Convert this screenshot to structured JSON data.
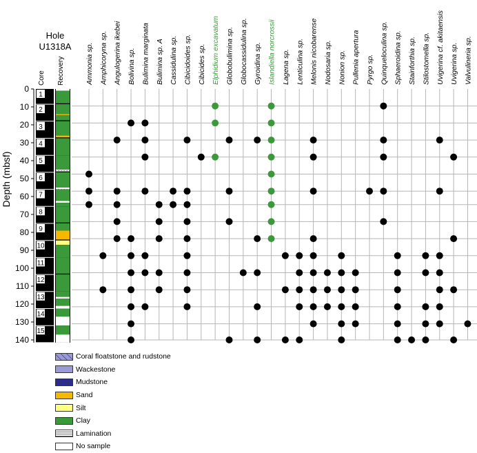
{
  "figure": {
    "hole_title_line1": "Hole",
    "hole_title_line2": "U1318A",
    "core_column_label": "Core",
    "recovery_column_label": "Recovery"
  },
  "chart_data": {
    "type": "scatter",
    "title": "Hole U1318A",
    "ylabel": "Depth (mbsf)",
    "ylim": [
      0,
      140
    ],
    "yticks": [
      0,
      10,
      20,
      30,
      40,
      50,
      60,
      70,
      80,
      90,
      100,
      110,
      120,
      130,
      140
    ],
    "grid": true,
    "highlight_color": "#3a9a3a",
    "marker_color": "#000000",
    "depths": [
      9.5,
      19,
      28.5,
      38,
      47.5,
      57,
      64.5,
      74,
      83.5,
      93,
      102.5,
      112,
      121.5,
      131,
      140
    ],
    "series": [
      {
        "name": "Ammonia sp.",
        "highlight": false,
        "depths": [
          47.5,
          57,
          64.5
        ]
      },
      {
        "name": "Amphicoryna sp.",
        "highlight": false,
        "depths": [
          93,
          112
        ]
      },
      {
        "name": "Angulogerina ikebei",
        "highlight": false,
        "depths": [
          28.5,
          57,
          64.5,
          74,
          83.5
        ]
      },
      {
        "name": "Bolivina sp.",
        "highlight": false,
        "depths": [
          19,
          83.5,
          93,
          102.5,
          112,
          121.5,
          131,
          140
        ]
      },
      {
        "name": "Bulimina marginata",
        "highlight": false,
        "depths": [
          19,
          28.5,
          38,
          57,
          93,
          102.5,
          121.5
        ]
      },
      {
        "name": "Bulimina sp. A",
        "highlight": false,
        "depths": [
          64.5,
          74,
          83.5,
          102.5,
          112
        ]
      },
      {
        "name": "Cassidulina sp.",
        "highlight": false,
        "depths": [
          57,
          64.5
        ]
      },
      {
        "name": "Cibicidoides sp.",
        "highlight": false,
        "depths": [
          28.5,
          57,
          64.5,
          74,
          83.5,
          93,
          102.5,
          112,
          121.5
        ]
      },
      {
        "name": "Cibicides sp.",
        "highlight": false,
        "depths": [
          38
        ]
      },
      {
        "name": "Elphidium excavatum",
        "highlight": true,
        "depths": [
          9.5,
          19,
          38
        ]
      },
      {
        "name": "Globobulimina sp.",
        "highlight": false,
        "depths": [
          28.5,
          57,
          74,
          140
        ]
      },
      {
        "name": "Globocassidulina sp.",
        "highlight": false,
        "depths": [
          102.5
        ]
      },
      {
        "name": "Gyroidina sp.",
        "highlight": false,
        "depths": [
          28.5,
          83.5,
          102.5,
          121.5,
          140
        ]
      },
      {
        "name": "Islandiella norcrossii",
        "highlight": true,
        "depths": [
          9.5,
          19,
          28.5,
          38,
          47.5,
          57,
          64.5,
          74,
          83.5
        ]
      },
      {
        "name": "Lagena sp.",
        "highlight": false,
        "depths": [
          93,
          112,
          140
        ]
      },
      {
        "name": "Lenticulina sp.",
        "highlight": false,
        "depths": [
          93,
          102.5,
          112,
          121.5,
          140
        ]
      },
      {
        "name": "Melonis nicobarense",
        "highlight": false,
        "depths": [
          28.5,
          38,
          57,
          83.5,
          93,
          102.5,
          112,
          121.5,
          131
        ]
      },
      {
        "name": "Nodosaria sp.",
        "highlight": false,
        "depths": [
          102.5,
          112,
          121.5
        ]
      },
      {
        "name": "Nonion sp.",
        "highlight": false,
        "depths": [
          93,
          102.5,
          112,
          121.5,
          131,
          140
        ]
      },
      {
        "name": "Pullenia apertura",
        "highlight": false,
        "depths": [
          102.5,
          112,
          121.5,
          131
        ]
      },
      {
        "name": "Pyrgo sp.",
        "highlight": false,
        "depths": [
          57
        ]
      },
      {
        "name": "Quinqueloculina sp.",
        "highlight": false,
        "depths": [
          9.5,
          28.5,
          38,
          57,
          74
        ]
      },
      {
        "name": "Sphaeroidina sp.",
        "highlight": false,
        "depths": [
          93,
          102.5,
          112,
          121.5,
          131,
          140
        ]
      },
      {
        "name": "Stainforthia sp.",
        "highlight": false,
        "depths": [
          140
        ]
      },
      {
        "name": "Stilostomella sp.",
        "highlight": false,
        "depths": [
          93,
          102.5,
          121.5,
          131,
          140
        ]
      },
      {
        "name": "Uvigerina cf. akitaensis",
        "highlight": false,
        "depths": [
          28.5,
          57,
          93,
          102.5,
          112,
          121.5,
          131
        ]
      },
      {
        "name": "Uvigerina sp.",
        "highlight": false,
        "depths": [
          38,
          83.5,
          112,
          140
        ]
      },
      {
        "name": "Valvulineria sp.",
        "highlight": false,
        "depths": [
          131
        ]
      }
    ],
    "cores": [
      {
        "label": "1",
        "top": 0,
        "bottom": 8.5
      },
      {
        "label": "2",
        "top": 8.5,
        "bottom": 18
      },
      {
        "label": "3",
        "top": 18,
        "bottom": 27.5
      },
      {
        "label": "4",
        "top": 27.5,
        "bottom": 37
      },
      {
        "label": "5",
        "top": 37,
        "bottom": 46.5
      },
      {
        "label": "6",
        "top": 46.5,
        "bottom": 56
      },
      {
        "label": "7",
        "top": 56,
        "bottom": 65.5
      },
      {
        "label": "8",
        "top": 65.5,
        "bottom": 75
      },
      {
        "label": "9",
        "top": 75,
        "bottom": 84.5
      },
      {
        "label": "10",
        "top": 84.5,
        "bottom": 94
      },
      {
        "label": "11",
        "top": 94,
        "bottom": 103.5
      },
      {
        "label": "12",
        "top": 103.5,
        "bottom": 113
      },
      {
        "label": "13",
        "top": 113,
        "bottom": 122.5
      },
      {
        "label": "14",
        "top": 122.5,
        "bottom": 132
      },
      {
        "label": "15",
        "top": 132,
        "bottom": 141.5
      }
    ],
    "recovery": [
      {
        "top": 0,
        "bottom": 1,
        "lith": "No sample"
      },
      {
        "top": 1,
        "bottom": 8,
        "lith": "Clay"
      },
      {
        "top": 8.5,
        "bottom": 14,
        "lith": "Clay"
      },
      {
        "top": 14,
        "bottom": 14.6,
        "lith": "Sand"
      },
      {
        "top": 14.6,
        "bottom": 17.5,
        "lith": "Clay"
      },
      {
        "top": 18,
        "bottom": 26,
        "lith": "Clay"
      },
      {
        "top": 26,
        "bottom": 27,
        "lith": "Sand"
      },
      {
        "top": 27.5,
        "bottom": 37,
        "lith": "Clay"
      },
      {
        "top": 37,
        "bottom": 45,
        "lith": "Clay"
      },
      {
        "top": 45,
        "bottom": 46,
        "lith": "Lamination"
      },
      {
        "top": 46.5,
        "bottom": 55,
        "lith": "Clay"
      },
      {
        "top": 55,
        "bottom": 56,
        "lith": "Lamination"
      },
      {
        "top": 56,
        "bottom": 62.5,
        "lith": "Clay"
      },
      {
        "top": 62.5,
        "bottom": 63.5,
        "lith": "No sample"
      },
      {
        "top": 63.5,
        "bottom": 65.5,
        "lith": "Clay"
      },
      {
        "top": 65.5,
        "bottom": 74.5,
        "lith": "Clay"
      },
      {
        "top": 75,
        "bottom": 79,
        "lith": "Clay"
      },
      {
        "top": 79,
        "bottom": 84,
        "lith": "Sand"
      },
      {
        "top": 84.5,
        "bottom": 87,
        "lith": "Silt"
      },
      {
        "top": 87,
        "bottom": 94,
        "lith": "Clay"
      },
      {
        "top": 94,
        "bottom": 103,
        "lith": "Clay"
      },
      {
        "top": 103.5,
        "bottom": 110,
        "lith": "Clay"
      },
      {
        "top": 110,
        "bottom": 113,
        "lith": "Clay"
      },
      {
        "top": 113,
        "bottom": 116,
        "lith": "Clay"
      },
      {
        "top": 116,
        "bottom": 117,
        "lith": "No sample"
      },
      {
        "top": 117,
        "bottom": 121,
        "lith": "Clay"
      },
      {
        "top": 121,
        "bottom": 122.5,
        "lith": "No sample"
      },
      {
        "top": 122.5,
        "bottom": 127,
        "lith": "Clay"
      },
      {
        "top": 127,
        "bottom": 132,
        "lith": "No sample"
      },
      {
        "top": 132,
        "bottom": 137,
        "lith": "Clay"
      },
      {
        "top": 137,
        "bottom": 141.5,
        "lith": "No sample"
      }
    ],
    "legend": [
      {
        "label": "Coral floatstone and rudstone",
        "color": "#9a9ad8",
        "pattern": "coral"
      },
      {
        "label": "Wackestone",
        "color": "#9a9ad8",
        "pattern": "none"
      },
      {
        "label": "Mudstone",
        "color": "#2c2c8c",
        "pattern": "none"
      },
      {
        "label": "Sand",
        "color": "#f5b800",
        "pattern": "none"
      },
      {
        "label": "Silt",
        "color": "#ffff80",
        "pattern": "none"
      },
      {
        "label": "Clay",
        "color": "#3a9a3a",
        "pattern": "none"
      },
      {
        "label": "Lamination",
        "color": "#ffffff",
        "pattern": "lamination"
      },
      {
        "label": "No sample",
        "color": "#ffffff",
        "pattern": "none"
      }
    ]
  }
}
